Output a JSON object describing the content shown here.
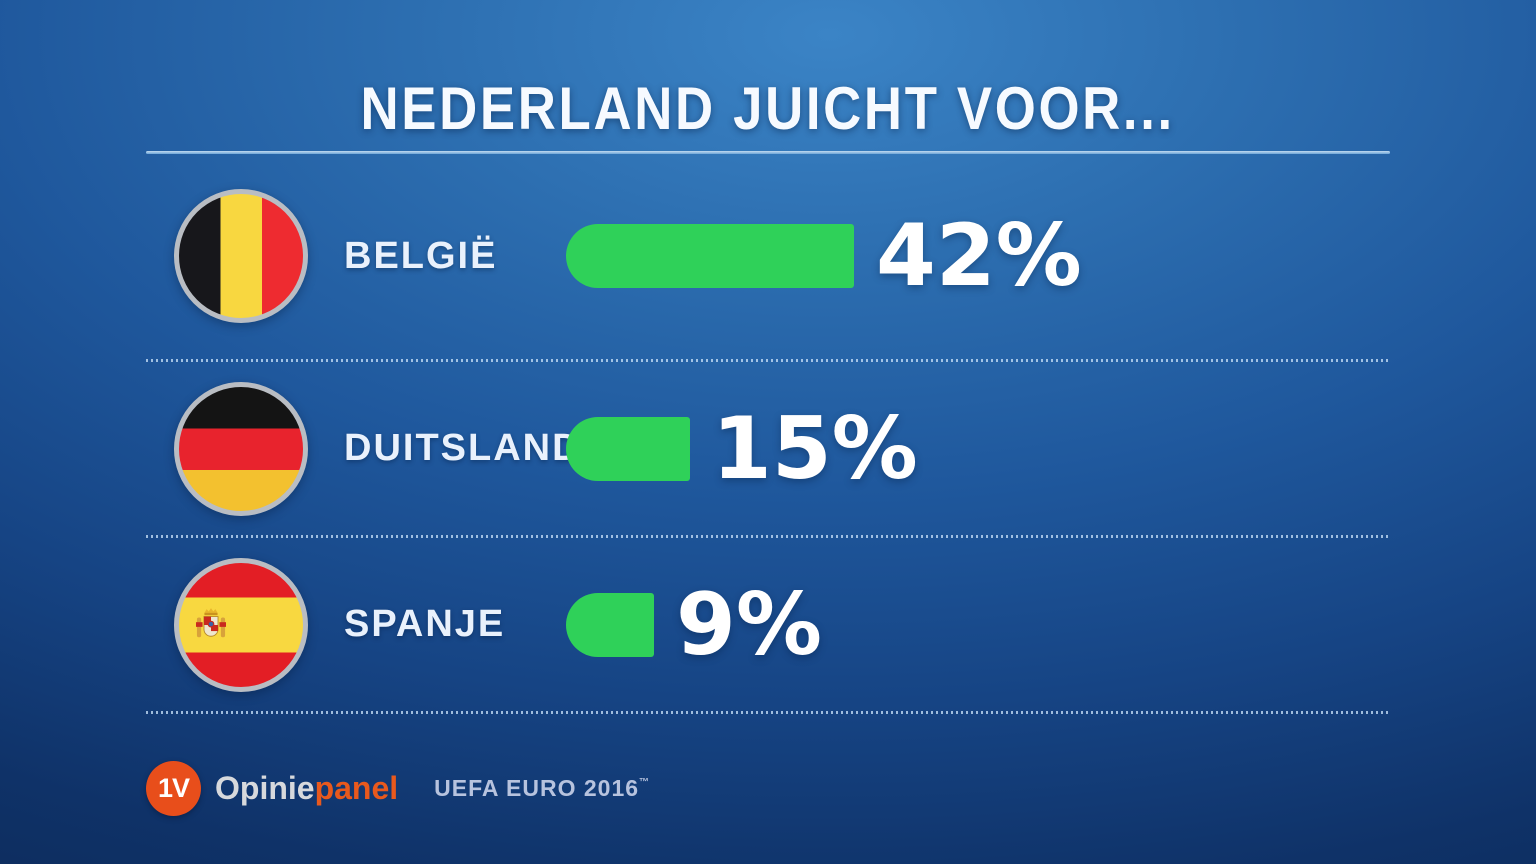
{
  "title": "NEDERLAND JUICHT VOOR...",
  "chart_data": {
    "type": "bar",
    "orientation": "horizontal",
    "title": "NEDERLAND JUICHT VOOR...",
    "categories": [
      "BELGIË",
      "DUITSLAND",
      "SPANJE"
    ],
    "values": [
      42,
      15,
      9
    ],
    "value_labels": [
      "42%",
      "15%",
      "9%"
    ],
    "unit": "%",
    "bar_color": "#2fd159",
    "flags": [
      "belgium-flag",
      "germany-flag",
      "spain-flag"
    ],
    "legend": null,
    "grid": false
  },
  "footer": {
    "logo_text": "1V",
    "brand_first": "Opinie",
    "brand_second": "panel",
    "event_label": "UEFA EURO 2016",
    "trademark": "™",
    "logo_color": "#e84e1b"
  },
  "colors": {
    "background_light": "#3b84c6",
    "background_dark": "#0b2753",
    "bar_green": "#2fd159",
    "title_text": "#f6faff",
    "label_text": "#e9f1fc",
    "underline": "#6ea6d8",
    "separator_dots": "#c6dff7",
    "flag_border": "#b9bdc3",
    "brand_orange": "#e8591d",
    "brand_gray": "#d7d9dc",
    "event_text": "#b7c3de"
  }
}
